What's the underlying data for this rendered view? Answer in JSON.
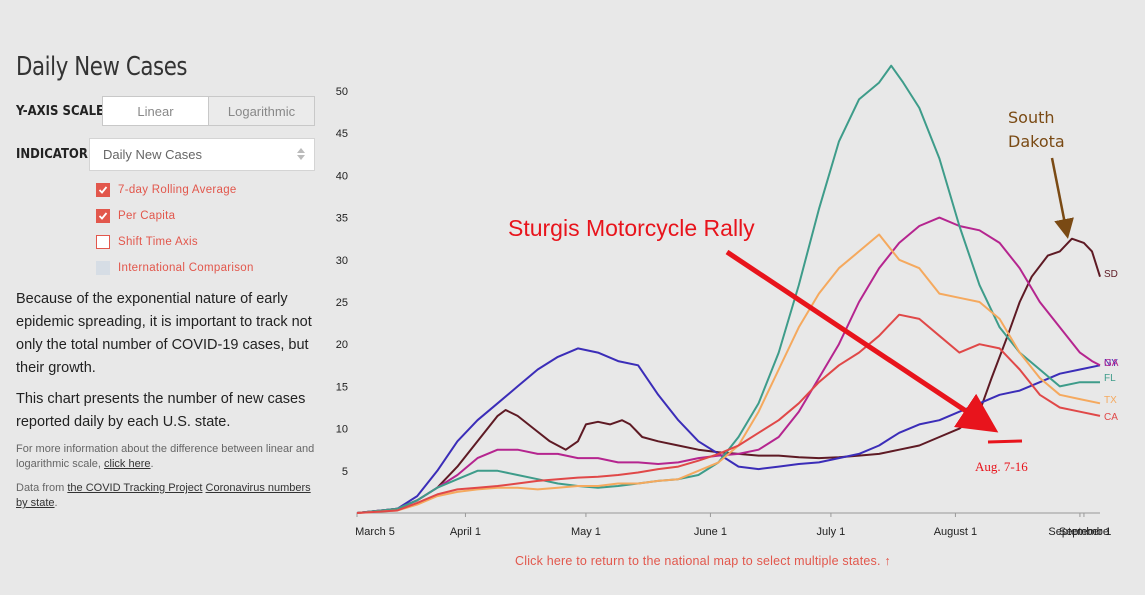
{
  "title": "Daily New Cases",
  "controls": {
    "yaxis_label": "Y-AXIS SCALE",
    "scale_linear": "Linear",
    "scale_log": "Logarithmic",
    "indicator_label": "INDICATOR",
    "indicator_value": "Daily New Cases",
    "checkboxes": [
      {
        "label": "7-day Rolling Average",
        "state": "checked"
      },
      {
        "label": "Per Capita",
        "state": "checked"
      },
      {
        "label": "Shift Time Axis",
        "state": "unchecked"
      },
      {
        "label": "International Comparison",
        "state": "disabled"
      }
    ]
  },
  "text": {
    "para1": "Because of the exponential nature of early epidemic spreading, it is important to track not only the total number of COVID-19 cases, but their growth.",
    "para2": "This chart presents the number of new cases reported daily by each U.S. state.",
    "note1_pre": "For more information about the difference between linear and logarithmic scale, ",
    "note1_link": "click here",
    "note1_post": ".",
    "note2_pre": "Data from ",
    "note2_link1": "the COVID Tracking Project",
    "note2_mid": " ",
    "note2_link2": "Coronavirus numbers by state",
    "note2_post": "."
  },
  "footer_link": "Click here to return to the national map to select multiple states. ↑",
  "annotations": {
    "rally": "Sturgis Motorcycle Rally",
    "dates": "Aug. 7-16",
    "south_dakota": [
      "South",
      "Dakota"
    ]
  },
  "colors": {
    "accent": "#e2574c",
    "annotation_red": "#e8141c",
    "annotation_brown": "#7a4a14"
  },
  "chart_data": {
    "type": "line",
    "x_ticks": [
      "March 5",
      "April 1",
      "May 1",
      "June 1",
      "July 1",
      "August 1",
      "September 1",
      "Septembe"
    ],
    "x_tick_days": [
      0,
      27,
      57,
      88,
      118,
      149,
      180,
      181
    ],
    "ylim": [
      0,
      50
    ],
    "y_ticks": [
      5,
      10,
      15,
      20,
      25,
      30,
      35,
      40,
      45,
      50
    ],
    "x_unit": "days since March 5",
    "series": [
      {
        "name": "SD",
        "color": "#5e1a24",
        "points": [
          [
            0,
            0
          ],
          [
            10,
            0.5
          ],
          [
            15,
            1.5
          ],
          [
            20,
            3
          ],
          [
            25,
            5.5
          ],
          [
            30,
            8.5
          ],
          [
            35,
            11.5
          ],
          [
            37,
            12.2
          ],
          [
            40,
            11.5
          ],
          [
            44,
            10
          ],
          [
            48,
            8.5
          ],
          [
            52,
            7.5
          ],
          [
            55,
            8.5
          ],
          [
            57,
            10.5
          ],
          [
            60,
            10.8
          ],
          [
            63,
            10.5
          ],
          [
            66,
            11
          ],
          [
            68,
            10.5
          ],
          [
            71,
            9
          ],
          [
            75,
            8.5
          ],
          [
            80,
            8
          ],
          [
            85,
            7.5
          ],
          [
            90,
            7.2
          ],
          [
            95,
            7
          ],
          [
            100,
            6.8
          ],
          [
            105,
            6.8
          ],
          [
            110,
            6.6
          ],
          [
            115,
            6.5
          ],
          [
            120,
            6.6
          ],
          [
            125,
            6.8
          ],
          [
            130,
            7
          ],
          [
            135,
            7.5
          ],
          [
            140,
            8
          ],
          [
            145,
            9
          ],
          [
            150,
            10
          ],
          [
            155,
            12
          ],
          [
            158,
            16
          ],
          [
            162,
            21
          ],
          [
            165,
            25
          ],
          [
            168,
            28
          ],
          [
            172,
            30.5
          ],
          [
            175,
            31
          ],
          [
            178,
            32.5
          ],
          [
            181,
            32
          ],
          [
            183,
            31
          ],
          [
            185,
            28
          ]
        ]
      },
      {
        "name": "NY",
        "color": "#3b2db8",
        "points": [
          [
            0,
            0
          ],
          [
            10,
            0.5
          ],
          [
            15,
            2
          ],
          [
            20,
            5
          ],
          [
            25,
            8.5
          ],
          [
            30,
            11
          ],
          [
            35,
            13
          ],
          [
            40,
            15
          ],
          [
            45,
            17
          ],
          [
            50,
            18.5
          ],
          [
            55,
            19.5
          ],
          [
            60,
            19
          ],
          [
            65,
            18
          ],
          [
            70,
            17.5
          ],
          [
            75,
            14
          ],
          [
            80,
            11
          ],
          [
            85,
            8.5
          ],
          [
            90,
            7
          ],
          [
            95,
            5.5
          ],
          [
            100,
            5.2
          ],
          [
            105,
            5.5
          ],
          [
            110,
            5.8
          ],
          [
            115,
            6
          ],
          [
            120,
            6.5
          ],
          [
            125,
            7
          ],
          [
            130,
            8
          ],
          [
            135,
            9.5
          ],
          [
            140,
            10.5
          ],
          [
            145,
            11
          ],
          [
            150,
            12
          ],
          [
            155,
            13
          ],
          [
            160,
            14
          ],
          [
            165,
            14.5
          ],
          [
            170,
            15.5
          ],
          [
            175,
            16.5
          ],
          [
            180,
            17
          ],
          [
            185,
            17.5
          ]
        ]
      },
      {
        "name": "GA",
        "color": "#b5258f",
        "points": [
          [
            0,
            0
          ],
          [
            10,
            0.5
          ],
          [
            15,
            1.5
          ],
          [
            20,
            3
          ],
          [
            25,
            4.5
          ],
          [
            30,
            6.5
          ],
          [
            35,
            7.5
          ],
          [
            40,
            7.5
          ],
          [
            45,
            7
          ],
          [
            50,
            7
          ],
          [
            55,
            6.5
          ],
          [
            60,
            6.5
          ],
          [
            65,
            6
          ],
          [
            70,
            6
          ],
          [
            75,
            5.8
          ],
          [
            80,
            6
          ],
          [
            85,
            6.5
          ],
          [
            90,
            6.8
          ],
          [
            95,
            7
          ],
          [
            100,
            7.5
          ],
          [
            105,
            9
          ],
          [
            110,
            12
          ],
          [
            115,
            16
          ],
          [
            120,
            20
          ],
          [
            125,
            25
          ],
          [
            130,
            29
          ],
          [
            135,
            32
          ],
          [
            140,
            34
          ],
          [
            145,
            35
          ],
          [
            150,
            34
          ],
          [
            155,
            33.5
          ],
          [
            160,
            32
          ],
          [
            165,
            29
          ],
          [
            170,
            25
          ],
          [
            175,
            22
          ],
          [
            180,
            19
          ],
          [
            183,
            18
          ],
          [
            185,
            17.5
          ]
        ]
      },
      {
        "name": "FL",
        "color": "#3e9c8a",
        "points": [
          [
            0,
            0
          ],
          [
            10,
            0.5
          ],
          [
            15,
            1.5
          ],
          [
            20,
            3
          ],
          [
            25,
            4
          ],
          [
            30,
            5
          ],
          [
            35,
            5
          ],
          [
            40,
            4.5
          ],
          [
            45,
            4
          ],
          [
            50,
            3.5
          ],
          [
            55,
            3.2
          ],
          [
            60,
            3
          ],
          [
            65,
            3.2
          ],
          [
            70,
            3.5
          ],
          [
            75,
            3.8
          ],
          [
            80,
            4
          ],
          [
            85,
            4.5
          ],
          [
            90,
            6
          ],
          [
            95,
            9
          ],
          [
            100,
            13
          ],
          [
            105,
            19
          ],
          [
            110,
            27
          ],
          [
            115,
            36
          ],
          [
            120,
            44
          ],
          [
            125,
            49
          ],
          [
            130,
            51
          ],
          [
            133,
            53
          ],
          [
            136,
            51
          ],
          [
            140,
            48
          ],
          [
            145,
            42
          ],
          [
            150,
            34
          ],
          [
            155,
            27
          ],
          [
            160,
            22
          ],
          [
            165,
            19
          ],
          [
            170,
            17
          ],
          [
            175,
            15
          ],
          [
            180,
            15.5
          ],
          [
            185,
            15.5
          ]
        ]
      },
      {
        "name": "TX",
        "color": "#f5a95e",
        "points": [
          [
            0,
            0
          ],
          [
            10,
            0.3
          ],
          [
            15,
            1
          ],
          [
            20,
            2
          ],
          [
            25,
            2.5
          ],
          [
            30,
            2.8
          ],
          [
            35,
            3
          ],
          [
            40,
            3
          ],
          [
            45,
            2.8
          ],
          [
            50,
            3
          ],
          [
            55,
            3.2
          ],
          [
            60,
            3.2
          ],
          [
            65,
            3.5
          ],
          [
            70,
            3.5
          ],
          [
            75,
            3.8
          ],
          [
            80,
            4
          ],
          [
            85,
            5
          ],
          [
            90,
            6
          ],
          [
            95,
            8
          ],
          [
            100,
            12
          ],
          [
            105,
            17
          ],
          [
            110,
            22
          ],
          [
            115,
            26
          ],
          [
            120,
            29
          ],
          [
            125,
            31
          ],
          [
            130,
            33
          ],
          [
            135,
            30
          ],
          [
            140,
            29
          ],
          [
            145,
            26
          ],
          [
            150,
            25.5
          ],
          [
            155,
            25
          ],
          [
            160,
            23
          ],
          [
            165,
            19
          ],
          [
            170,
            16
          ],
          [
            175,
            14
          ],
          [
            180,
            13.5
          ],
          [
            185,
            13
          ]
        ]
      },
      {
        "name": "CA",
        "color": "#e04848",
        "points": [
          [
            0,
            0
          ],
          [
            10,
            0.3
          ],
          [
            15,
            1.2
          ],
          [
            20,
            2.2
          ],
          [
            25,
            2.8
          ],
          [
            30,
            3
          ],
          [
            35,
            3.2
          ],
          [
            40,
            3.5
          ],
          [
            45,
            3.8
          ],
          [
            50,
            4
          ],
          [
            55,
            4.2
          ],
          [
            60,
            4.3
          ],
          [
            65,
            4.5
          ],
          [
            70,
            4.8
          ],
          [
            75,
            5.2
          ],
          [
            80,
            5.5
          ],
          [
            85,
            6.2
          ],
          [
            90,
            7
          ],
          [
            95,
            8
          ],
          [
            100,
            9.5
          ],
          [
            105,
            11
          ],
          [
            110,
            13
          ],
          [
            115,
            15.5
          ],
          [
            120,
            17.5
          ],
          [
            125,
            19
          ],
          [
            130,
            21
          ],
          [
            135,
            23.5
          ],
          [
            140,
            23
          ],
          [
            145,
            21
          ],
          [
            150,
            19
          ],
          [
            155,
            20
          ],
          [
            160,
            19.5
          ],
          [
            165,
            17
          ],
          [
            170,
            14
          ],
          [
            175,
            12.5
          ],
          [
            180,
            12
          ],
          [
            185,
            11.5
          ]
        ]
      }
    ]
  }
}
